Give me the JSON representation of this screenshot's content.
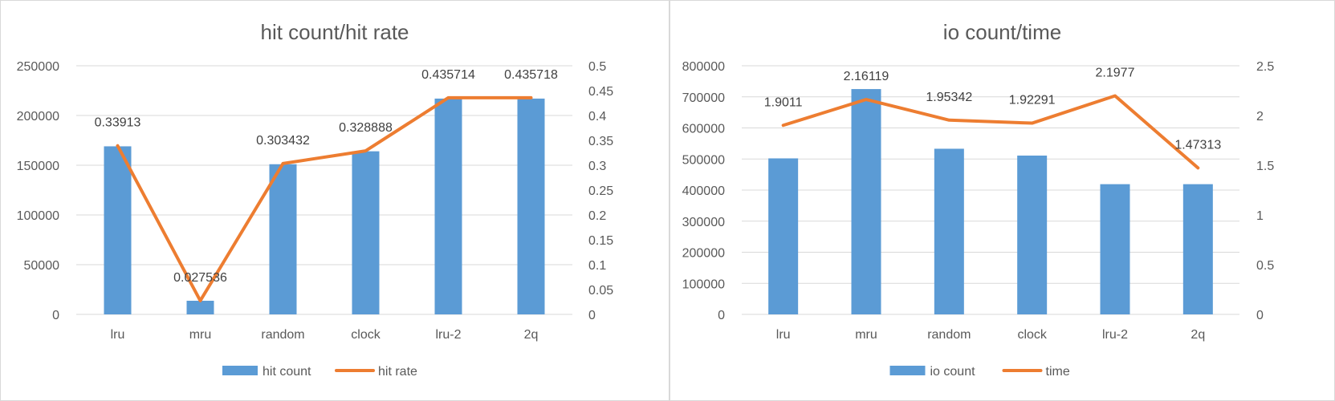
{
  "colors": {
    "bar": "#5b9bd5",
    "line": "#ed7d31",
    "grid": "#d9d9d9",
    "text": "#595959",
    "border": "#d9d9d9"
  },
  "chart_data": [
    {
      "type": "bar+line",
      "title": "hit count/hit rate",
      "categories": [
        "lru",
        "mru",
        "random",
        "clock",
        "lru-2",
        "2q"
      ],
      "series": [
        {
          "name": "hit count",
          "type": "bar",
          "axis": "left",
          "values": [
            169000,
            13700,
            151000,
            164000,
            217000,
            217000
          ]
        },
        {
          "name": "hit rate",
          "type": "line",
          "axis": "right",
          "values": [
            0.33913,
            0.027536,
            0.303432,
            0.328888,
            0.435714,
            0.435718
          ]
        }
      ],
      "data_labels": [
        "0.33913",
        "0.027536",
        "0.303432",
        "0.328888",
        "0.435714",
        "0.435718"
      ],
      "left_axis": {
        "min": 0,
        "max": 250000,
        "ticks": [
          "0",
          "50000",
          "100000",
          "150000",
          "200000",
          "250000"
        ]
      },
      "right_axis": {
        "min": 0,
        "max": 0.5,
        "ticks": [
          "0",
          "0.05",
          "0.1",
          "0.15",
          "0.2",
          "0.25",
          "0.3",
          "0.35",
          "0.4",
          "0.45",
          "0.5"
        ]
      },
      "grid": true,
      "legend": "bottom"
    },
    {
      "type": "bar+line",
      "title": "io count/time",
      "categories": [
        "lru",
        "mru",
        "random",
        "clock",
        "lru-2",
        "2q"
      ],
      "series": [
        {
          "name": "io count",
          "type": "bar",
          "axis": "left",
          "values": [
            502000,
            725000,
            533000,
            511000,
            419000,
            419000
          ]
        },
        {
          "name": "time",
          "type": "line",
          "axis": "right",
          "values": [
            1.9011,
            2.16119,
            1.95342,
            1.92291,
            2.1977,
            1.47313
          ]
        }
      ],
      "data_labels": [
        "1.9011",
        "2.16119",
        "1.95342",
        "1.92291",
        "2.1977",
        "1.47313"
      ],
      "left_axis": {
        "min": 0,
        "max": 800000,
        "ticks": [
          "0",
          "100000",
          "200000",
          "300000",
          "400000",
          "500000",
          "600000",
          "700000",
          "800000"
        ]
      },
      "right_axis": {
        "min": 0,
        "max": 2.5,
        "ticks": [
          "0",
          "0.5",
          "1",
          "1.5",
          "2",
          "2.5"
        ]
      },
      "grid": true,
      "legend": "bottom"
    }
  ]
}
